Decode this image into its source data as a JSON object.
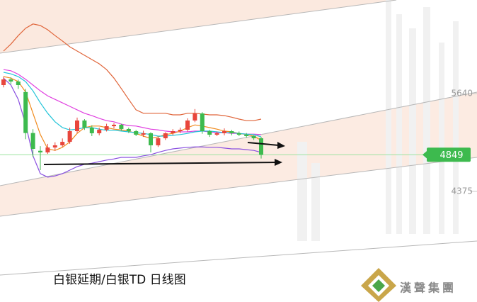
{
  "chart_data": {
    "type": "candlestick",
    "title": "白银延期/白银TD  日线图",
    "open": [
      5750,
      5823,
      5796,
      5660,
      5130,
      4900,
      4879,
      4943,
      4971,
      5016,
      5154,
      5292,
      5200,
      5127,
      5172,
      5218,
      5237,
      5182,
      5154,
      5108,
      5127,
      4971,
      5062,
      5127,
      5154,
      5172,
      5292,
      5383,
      5154,
      5108,
      5127,
      5154,
      5127,
      5108,
      5090,
      5062
    ],
    "high": [
      5860,
      5850,
      5820,
      5700,
      5180,
      4960,
      4990,
      5010,
      5060,
      5200,
      5330,
      5310,
      5230,
      5200,
      5250,
      5260,
      5250,
      5200,
      5170,
      5160,
      5140,
      5080,
      5140,
      5180,
      5200,
      5320,
      5440,
      5400,
      5170,
      5150,
      5190,
      5170,
      5150,
      5130,
      5100,
      5080
    ],
    "low": [
      5720,
      5760,
      5700,
      5050,
      4820,
      4650,
      4860,
      4900,
      4950,
      4990,
      5130,
      5170,
      5090,
      5100,
      5150,
      5190,
      5160,
      5130,
      5090,
      5080,
      4880,
      4950,
      5040,
      5100,
      5130,
      5150,
      5270,
      5120,
      5080,
      5090,
      5100,
      5100,
      5090,
      5070,
      5040,
      4800
    ],
    "close": [
      5823,
      5796,
      5750,
      5130,
      4925,
      4879,
      4943,
      4971,
      5016,
      5154,
      5292,
      5200,
      5127,
      5172,
      5218,
      5237,
      5182,
      5154,
      5108,
      5127,
      4971,
      5062,
      5127,
      5154,
      5172,
      5292,
      5383,
      5154,
      5108,
      5127,
      5154,
      5127,
      5108,
      5090,
      5062,
      4849
    ],
    "up_color": "#e8463c",
    "down_color": "#3dba4e",
    "series": [
      {
        "color": "#e0653a",
        "values": [
          6190,
          6280,
          6390,
          6485,
          6540,
          6520,
          6465,
          6390,
          6320,
          6245,
          6190,
          6135,
          6080,
          6025,
          5950,
          5840,
          5705,
          5565,
          5430,
          5385,
          5385,
          5385,
          5385,
          5365,
          5365,
          5385,
          5385,
          5375,
          5365,
          5365,
          5355,
          5335,
          5310,
          5290,
          5290,
          5310
        ]
      },
      {
        "color": "#e040e0",
        "values": [
          5950,
          5935,
          5890,
          5825,
          5750,
          5675,
          5610,
          5565,
          5520,
          5475,
          5430,
          5385,
          5355,
          5320,
          5290,
          5275,
          5245,
          5225,
          5220,
          5200,
          5180,
          5170,
          5155,
          5145,
          5145,
          5145,
          5155,
          5155,
          5145,
          5135,
          5135,
          5125,
          5125,
          5115,
          5115,
          5110
        ]
      },
      {
        "color": "#8a4fe0",
        "values": [
          5840,
          5750,
          5565,
          5245,
          4835,
          4605,
          4560,
          4575,
          4605,
          4650,
          4695,
          4725,
          4740,
          4760,
          4780,
          4795,
          4815,
          4815,
          4815,
          4835,
          4850,
          4880,
          4905,
          4925,
          4935,
          4945,
          4950,
          4950,
          4945,
          4945,
          4935,
          4925,
          4925,
          4915,
          4905,
          4880
        ]
      },
      {
        "color": "#f08a1c",
        "values": [
          5860,
          5840,
          5795,
          5660,
          5385,
          5110,
          4925,
          4905,
          4945,
          5015,
          5125,
          5200,
          5220,
          5220,
          5200,
          5180,
          5170,
          5155,
          5125,
          5090,
          5060,
          5080,
          5110,
          5125,
          5155,
          5200,
          5235,
          5220,
          5200,
          5180,
          5155,
          5145,
          5125,
          5110,
          5090,
          5035
        ]
      },
      {
        "color": "#22c4d8",
        "values": [
          5915,
          5895,
          5860,
          5795,
          5675,
          5520,
          5385,
          5275,
          5200,
          5170,
          5180,
          5200,
          5200,
          5180,
          5165,
          5165,
          5155,
          5145,
          5135,
          5125,
          5110,
          5090,
          5090,
          5100,
          5110,
          5125,
          5145,
          5155,
          5155,
          5145,
          5135,
          5135,
          5125,
          5115,
          5110,
          5080
        ]
      }
    ],
    "ylim": [
      2945,
      6850
    ],
    "yticks": [
      5640,
      4375
    ],
    "last_price": 4849,
    "last_price_color": "#3dba4e"
  },
  "logo": {
    "text": "漢聲集團"
  }
}
